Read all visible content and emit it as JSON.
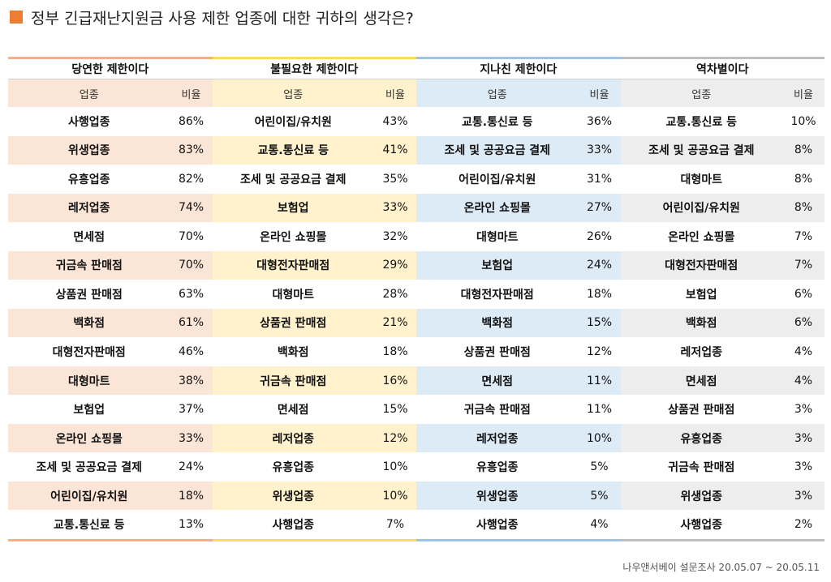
{
  "title": "정부 긴급재난지원금 사용 제한 업종에 대한 귀하의 생각은?",
  "footer": "나우앤서베이 설문조사 20.05.07 ~ 20.05.11",
  "col_name_label": "업종",
  "col_pct_label": "비율",
  "groups": [
    {
      "header": "당연한 제한이다",
      "accent": "#F4B183",
      "tint": "#FBE5D6",
      "rows": [
        [
          "사행업종",
          "86%"
        ],
        [
          "위생업종",
          "83%"
        ],
        [
          "유흥업종",
          "82%"
        ],
        [
          "레저업종",
          "74%"
        ],
        [
          "면세점",
          "70%"
        ],
        [
          "귀금속 판매점",
          "70%"
        ],
        [
          "상품권 판매점",
          "63%"
        ],
        [
          "백화점",
          "61%"
        ],
        [
          "대형전자판매점",
          "46%"
        ],
        [
          "대형마트",
          "38%"
        ],
        [
          "보험업",
          "37%"
        ],
        [
          "온라인 쇼핑몰",
          "33%"
        ],
        [
          "조세 및 공공요금 결제",
          "24%"
        ],
        [
          "어린이집/유치원",
          "18%"
        ],
        [
          "교통.통신료 등",
          "13%"
        ]
      ]
    },
    {
      "header": "불필요한 제한이다",
      "accent": "#FFD966",
      "tint": "#FFF2CC",
      "rows": [
        [
          "어린이집/유치원",
          "43%"
        ],
        [
          "교통.통신료 등",
          "41%"
        ],
        [
          "조세 및 공공요금 결제",
          "35%"
        ],
        [
          "보험업",
          "33%"
        ],
        [
          "온라인 쇼핑몰",
          "32%"
        ],
        [
          "대형전자판매점",
          "29%"
        ],
        [
          "대형마트",
          "28%"
        ],
        [
          "상품권 판매점",
          "21%"
        ],
        [
          "백화점",
          "18%"
        ],
        [
          "귀금속 판매점",
          "16%"
        ],
        [
          "면세점",
          "15%"
        ],
        [
          "레저업종",
          "12%"
        ],
        [
          "유흥업종",
          "10%"
        ],
        [
          "위생업종",
          "10%"
        ],
        [
          "사행업종",
          "7%"
        ]
      ]
    },
    {
      "header": "지나친 제한이다",
      "accent": "#9DC3E6",
      "tint": "#DDEBF7",
      "rows": [
        [
          "교통.통신료 등",
          "36%"
        ],
        [
          "조세 및 공공요금 결제",
          "33%"
        ],
        [
          "어린이집/유치원",
          "31%"
        ],
        [
          "온라인 쇼핑몰",
          "27%"
        ],
        [
          "대형마트",
          "26%"
        ],
        [
          "보험업",
          "24%"
        ],
        [
          "대형전자판매점",
          "18%"
        ],
        [
          "백화점",
          "15%"
        ],
        [
          "상품권 판매점",
          "12%"
        ],
        [
          "면세점",
          "11%"
        ],
        [
          "귀금속 판매점",
          "11%"
        ],
        [
          "레저업종",
          "10%"
        ],
        [
          "유흥업종",
          "5%"
        ],
        [
          "위생업종",
          "5%"
        ],
        [
          "사행업종",
          "4%"
        ]
      ]
    },
    {
      "header": "역차별이다",
      "accent": "#BFBFBF",
      "tint": "#EDEDED",
      "rows": [
        [
          "교통.통신료 등",
          "10%"
        ],
        [
          "조세 및 공공요금 결제",
          "8%"
        ],
        [
          "대형마트",
          "8%"
        ],
        [
          "어린이집/유치원",
          "8%"
        ],
        [
          "온라인 쇼핑몰",
          "7%"
        ],
        [
          "대형전자판매점",
          "7%"
        ],
        [
          "보험업",
          "6%"
        ],
        [
          "백화점",
          "6%"
        ],
        [
          "레저업종",
          "4%"
        ],
        [
          "면세점",
          "4%"
        ],
        [
          "상품권 판매점",
          "3%"
        ],
        [
          "유흥업종",
          "3%"
        ],
        [
          "귀금속 판매점",
          "3%"
        ],
        [
          "위생업종",
          "3%"
        ],
        [
          "사행업종",
          "2%"
        ]
      ]
    }
  ]
}
